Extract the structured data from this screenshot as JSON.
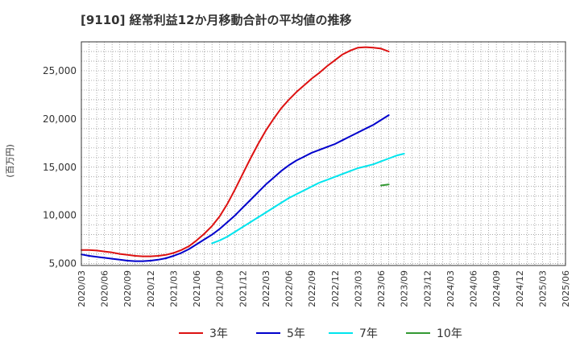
{
  "chart_data": {
    "type": "line",
    "title": "[9110]  経常利益12か月移動合計の平均値の推移",
    "ylabel": "(百万円)",
    "xlabel": "",
    "x_ticks": [
      "2020/03",
      "2020/06",
      "2020/09",
      "2020/12",
      "2021/03",
      "2021/06",
      "2021/09",
      "2021/12",
      "2022/03",
      "2022/06",
      "2022/09",
      "2022/12",
      "2023/03",
      "2023/06",
      "2023/09",
      "2023/12",
      "2024/03",
      "2024/06",
      "2024/09",
      "2024/12",
      "2025/03",
      "2025/06"
    ],
    "y_ticks": [
      5000,
      10000,
      15000,
      20000,
      25000
    ],
    "y_tick_labels": [
      "5,000",
      "10,000",
      "15,000",
      "20,000",
      "25,000"
    ],
    "ylim": [
      4800,
      28000
    ],
    "grid": true,
    "legend_position": "bottom",
    "series": [
      {
        "name": "3年",
        "color": "#dd1111",
        "start_index": 0,
        "values": [
          6400,
          6400,
          6350,
          6250,
          6150,
          6000,
          5900,
          5800,
          5750,
          5750,
          5800,
          5900,
          6100,
          6400,
          6800,
          7400,
          8100,
          8900,
          9900,
          11200,
          12700,
          14300,
          15900,
          17400,
          18800,
          20000,
          21100,
          22000,
          22800,
          23500,
          24200,
          24800,
          25500,
          26100,
          26700,
          27100,
          27400,
          27450,
          27400,
          27300,
          27000
        ]
      },
      {
        "name": "5年",
        "color": "#0000cc",
        "start_index": 0,
        "values": [
          5950,
          5800,
          5700,
          5600,
          5500,
          5400,
          5300,
          5250,
          5250,
          5300,
          5400,
          5550,
          5800,
          6100,
          6500,
          7000,
          7500,
          8000,
          8600,
          9300,
          10000,
          10800,
          11600,
          12400,
          13200,
          13900,
          14600,
          15200,
          15700,
          16100,
          16500,
          16800,
          17100,
          17400,
          17800,
          18200,
          18600,
          19000,
          19400,
          19900,
          20400
        ]
      },
      {
        "name": "7年",
        "color": "#00e5ee",
        "start_index": 17,
        "values": [
          7100,
          7400,
          7800,
          8300,
          8800,
          9300,
          9800,
          10300,
          10800,
          11300,
          11800,
          12200,
          12600,
          13000,
          13400,
          13700,
          14000,
          14300,
          14600,
          14900,
          15100,
          15300,
          15600,
          15900,
          16200,
          16400
        ]
      },
      {
        "name": "10年",
        "color": "#339933",
        "start_index": 39,
        "values": [
          13100,
          13200
        ]
      }
    ]
  }
}
